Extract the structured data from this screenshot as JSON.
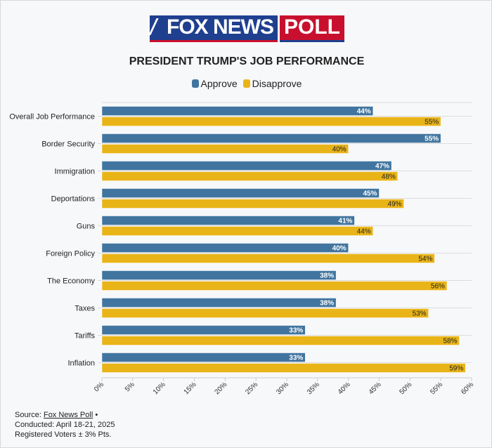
{
  "logo": {
    "part1": "FOX NEWS",
    "part2": "POLL"
  },
  "colors": {
    "approve": "#41759f",
    "disapprove": "#e9b418",
    "grid": "#dcdcdc"
  },
  "chart_data": {
    "type": "bar",
    "orientation": "horizontal",
    "title": "PRESIDENT TRUMP'S JOB PERFORMANCE",
    "categories": [
      "Overall Job Performance",
      "Border Security",
      "Immigration",
      "Deportations",
      "Guns",
      "Foreign Policy",
      "The Economy",
      "Taxes",
      "Tariffs",
      "Inflation"
    ],
    "series": [
      {
        "name": "Approve",
        "values": [
          44,
          55,
          47,
          45,
          41,
          40,
          38,
          38,
          33,
          33
        ]
      },
      {
        "name": "Disapprove",
        "values": [
          55,
          40,
          48,
          49,
          44,
          54,
          56,
          53,
          58,
          59
        ]
      }
    ],
    "xlim": [
      0,
      60
    ],
    "xticks": [
      "0%",
      "5%",
      "10%",
      "15%",
      "20%",
      "25%",
      "30%",
      "35%",
      "40%",
      "45%",
      "50%",
      "55%",
      "60%"
    ],
    "legend": "top-center",
    "grid": true
  },
  "footer": {
    "source_label": "Source: ",
    "source_link": "Fox News Poll",
    "bullet": " •",
    "conducted": "Conducted: April 18-21, 2025",
    "sample": "Registered Voters ± 3% Pts."
  }
}
